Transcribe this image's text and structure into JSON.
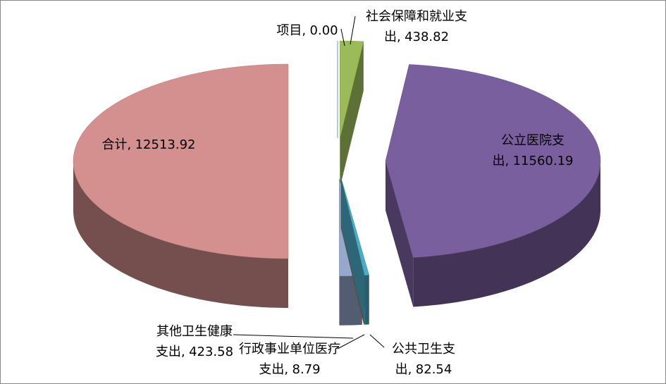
{
  "chart_data": {
    "type": "pie3d",
    "categories": [
      "项目",
      "社会保障和就业支出",
      "公立医院支出",
      "公共卫生支出",
      "行政事业单位医疗支出",
      "其他卫生健康支出",
      "合计"
    ],
    "values": [
      0,
      438.82,
      11560.19,
      82.54,
      8.79,
      423.58,
      12513.92
    ],
    "value_labels": [
      "0.00",
      "438.82",
      "11560.19",
      "82.54",
      "8.79",
      "423.58",
      "12513.92"
    ],
    "colors": [
      "#4f81bd",
      "#9bbb59",
      "#7a5f9e",
      "#4bacc6",
      "#c0692a",
      "#95a9cf",
      "#d4908e"
    ]
  }
}
